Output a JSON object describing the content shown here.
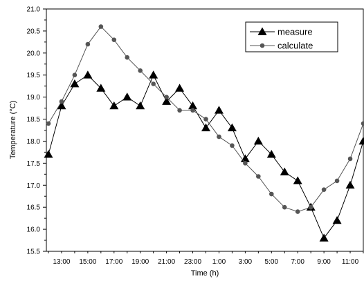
{
  "chart_data": {
    "type": "line",
    "title": "",
    "xlabel": "Time (h)",
    "ylabel": "Temperature (°C)",
    "ylim": [
      15.5,
      21.0
    ],
    "yticks": [
      "15.5",
      "16.0",
      "16.5",
      "17.0",
      "17.5",
      "18.0",
      "18.5",
      "19.0",
      "19.5",
      "20.0",
      "20.5",
      "21.0"
    ],
    "x": [
      "12:00",
      "13:00",
      "14:00",
      "15:00",
      "16:00",
      "17:00",
      "18:00",
      "19:00",
      "20:00",
      "21:00",
      "22:00",
      "23:00",
      "0:00",
      "1:00",
      "2:00",
      "3:00",
      "4:00",
      "5:00",
      "6:00",
      "7:00",
      "8:00",
      "9:00",
      "10:00",
      "11:00",
      "12:00"
    ],
    "xtick_labels": [
      "13:00",
      "15:00",
      "17:00",
      "19:00",
      "21:00",
      "23:00",
      "1:00",
      "3:00",
      "5:00",
      "7:00",
      "9:00",
      "11:00"
    ],
    "grid": false,
    "legend_position": "top-right",
    "series": [
      {
        "name": "measure",
        "marker": "triangle",
        "color": "#000000",
        "values": [
          17.7,
          18.8,
          19.3,
          19.5,
          19.2,
          18.8,
          19.0,
          18.8,
          19.5,
          18.9,
          19.2,
          18.8,
          18.3,
          18.7,
          18.3,
          17.6,
          18.0,
          17.7,
          17.3,
          17.1,
          16.5,
          15.8,
          16.2,
          17.0,
          18.0
        ]
      },
      {
        "name": "calculate",
        "marker": "circle",
        "color": "#555555",
        "values": [
          18.4,
          18.9,
          19.5,
          20.2,
          20.6,
          20.3,
          19.9,
          19.6,
          19.3,
          19.0,
          18.7,
          18.7,
          18.5,
          18.1,
          17.9,
          17.5,
          17.2,
          16.8,
          16.5,
          16.4,
          16.5,
          16.9,
          17.1,
          17.6,
          18.4
        ]
      }
    ]
  }
}
